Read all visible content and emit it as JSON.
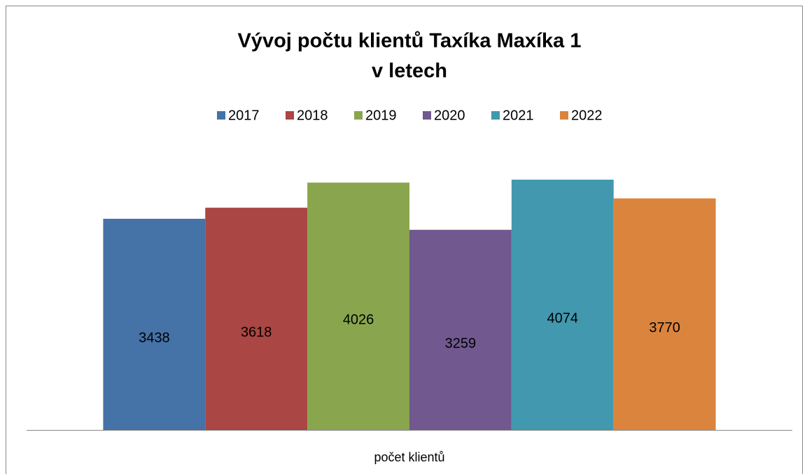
{
  "chart_data": {
    "type": "bar",
    "title": [
      "Vývoj počtu klientů Taxíka Maxíka 1",
      "v letech"
    ],
    "categories": [
      "počet klientů"
    ],
    "series": [
      {
        "name": "2017",
        "color": "#4572a7",
        "values": [
          3438
        ]
      },
      {
        "name": "2018",
        "color": "#aa4643",
        "values": [
          3618
        ]
      },
      {
        "name": "2019",
        "color": "#89a54e",
        "values": [
          4026
        ]
      },
      {
        "name": "2020",
        "color": "#71588f",
        "values": [
          3259
        ]
      },
      {
        "name": "2021",
        "color": "#4198af",
        "values": [
          4074
        ]
      },
      {
        "name": "2022",
        "color": "#db843d",
        "values": [
          3770
        ]
      }
    ],
    "ylim": [
      0,
      4500
    ],
    "legend": "top"
  }
}
